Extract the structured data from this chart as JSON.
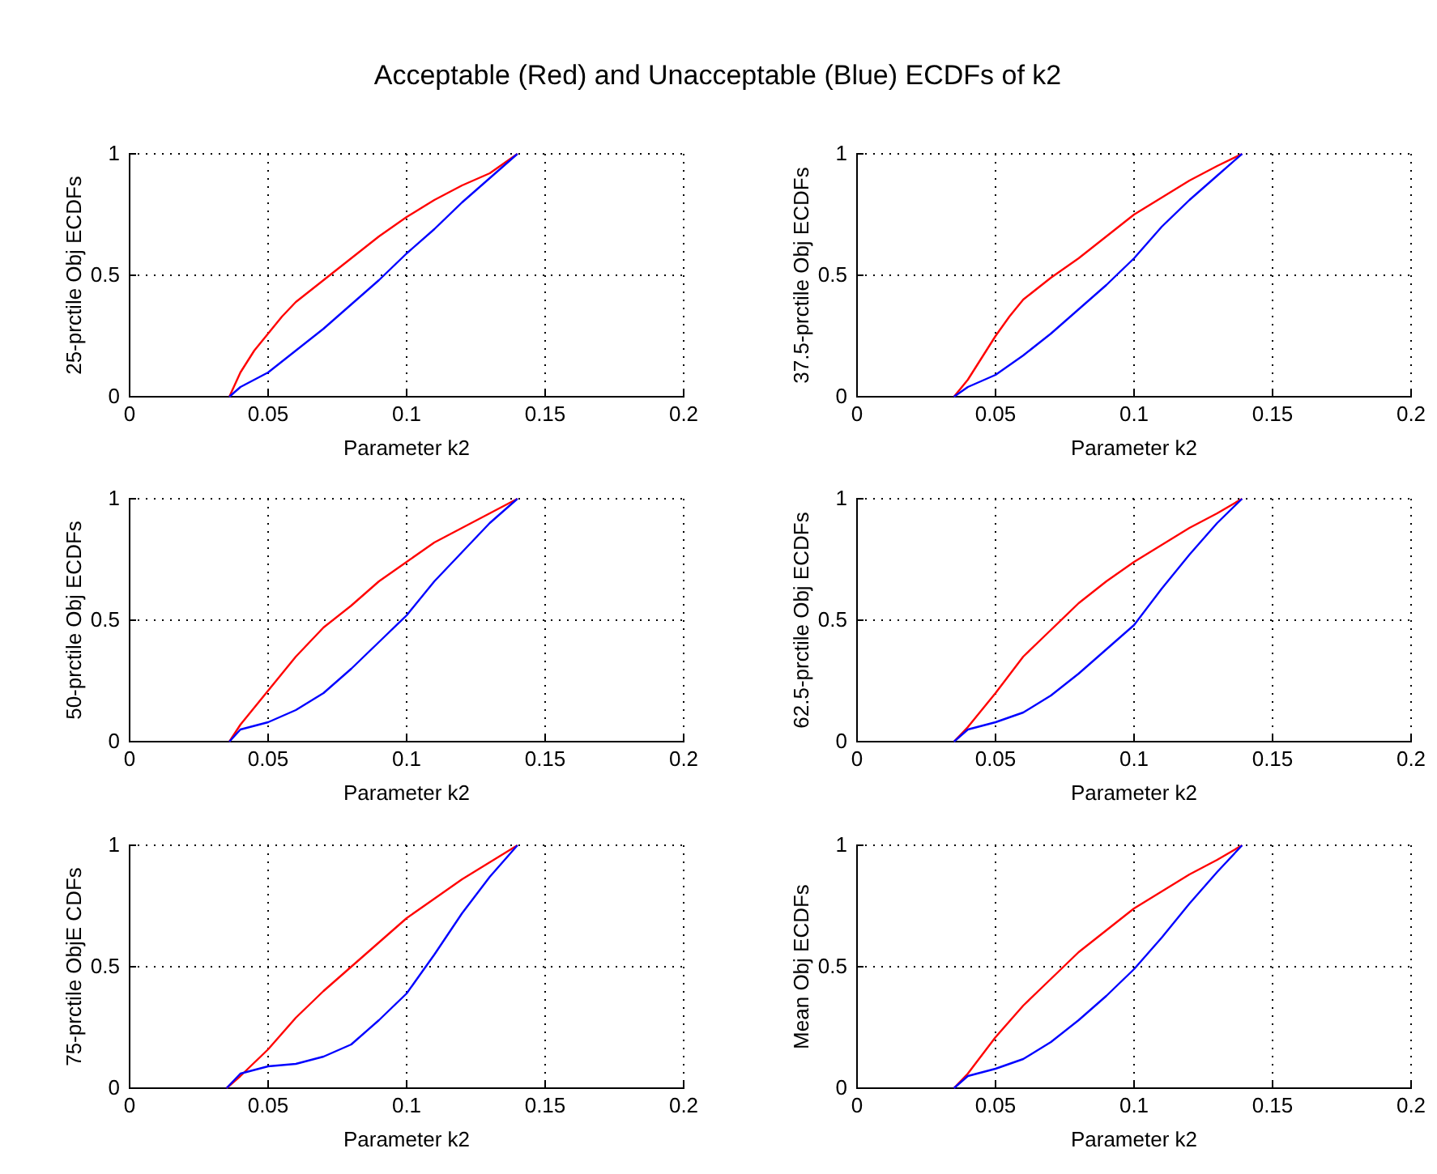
{
  "chart_data": [
    {
      "type": "line",
      "title": "Acceptable (Red) and Unacceptable (Blue) ECDFs of k2",
      "xlabel": "Parameter k2",
      "ylabel": "25-prctile Obj ECDFs",
      "xlim": [
        0,
        0.2
      ],
      "xticks": [
        0,
        0.05,
        0.1,
        0.15,
        0.2
      ],
      "ylim": [
        0,
        1
      ],
      "yticks": [
        0,
        0.5,
        1
      ],
      "grid": true,
      "series": [
        {
          "color": "#ff0000",
          "x": [
            0.036,
            0.04,
            0.045,
            0.05,
            0.055,
            0.06,
            0.07,
            0.08,
            0.09,
            0.1,
            0.11,
            0.12,
            0.13,
            0.14
          ],
          "values": [
            0,
            0.1,
            0.19,
            0.26,
            0.33,
            0.39,
            0.48,
            0.57,
            0.66,
            0.74,
            0.81,
            0.87,
            0.92,
            1
          ]
        },
        {
          "color": "#0000ff",
          "x": [
            0.036,
            0.04,
            0.05,
            0.06,
            0.07,
            0.08,
            0.09,
            0.1,
            0.11,
            0.12,
            0.13,
            0.14
          ],
          "values": [
            0,
            0.04,
            0.1,
            0.19,
            0.28,
            0.38,
            0.48,
            0.59,
            0.69,
            0.8,
            0.9,
            1
          ]
        }
      ]
    },
    {
      "type": "line",
      "xlabel": "Parameter k2",
      "ylabel": "37.5-prctile Obj ECDFs",
      "xlim": [
        0,
        0.2
      ],
      "xticks": [
        0,
        0.05,
        0.1,
        0.15,
        0.2
      ],
      "ylim": [
        0,
        1
      ],
      "yticks": [
        0,
        0.5,
        1
      ],
      "grid": true,
      "series": [
        {
          "color": "#ff0000",
          "x": [
            0.035,
            0.04,
            0.045,
            0.05,
            0.055,
            0.06,
            0.07,
            0.08,
            0.09,
            0.1,
            0.11,
            0.12,
            0.13,
            0.139
          ],
          "values": [
            0,
            0.07,
            0.16,
            0.25,
            0.33,
            0.4,
            0.49,
            0.57,
            0.66,
            0.75,
            0.82,
            0.89,
            0.95,
            1
          ]
        },
        {
          "color": "#0000ff",
          "x": [
            0.035,
            0.04,
            0.05,
            0.06,
            0.07,
            0.08,
            0.09,
            0.1,
            0.11,
            0.12,
            0.13,
            0.139
          ],
          "values": [
            0,
            0.04,
            0.09,
            0.17,
            0.26,
            0.36,
            0.46,
            0.57,
            0.7,
            0.81,
            0.91,
            1
          ]
        }
      ]
    },
    {
      "type": "line",
      "xlabel": "Parameter k2",
      "ylabel": "50-prctile Obj ECDFs",
      "xlim": [
        0,
        0.2
      ],
      "xticks": [
        0,
        0.05,
        0.1,
        0.15,
        0.2
      ],
      "ylim": [
        0,
        1
      ],
      "yticks": [
        0,
        0.5,
        1
      ],
      "grid": true,
      "series": [
        {
          "color": "#ff0000",
          "x": [
            0.036,
            0.04,
            0.05,
            0.06,
            0.07,
            0.08,
            0.09,
            0.1,
            0.11,
            0.12,
            0.13,
            0.14
          ],
          "values": [
            0,
            0.07,
            0.21,
            0.35,
            0.47,
            0.56,
            0.66,
            0.74,
            0.82,
            0.88,
            0.94,
            1
          ]
        },
        {
          "color": "#0000ff",
          "x": [
            0.036,
            0.04,
            0.05,
            0.06,
            0.07,
            0.08,
            0.09,
            0.1,
            0.11,
            0.12,
            0.13,
            0.14
          ],
          "values": [
            0,
            0.05,
            0.08,
            0.13,
            0.2,
            0.3,
            0.41,
            0.52,
            0.66,
            0.78,
            0.9,
            1
          ]
        }
      ]
    },
    {
      "type": "line",
      "xlabel": "Parameter k2",
      "ylabel": "62.5-prctile Obj ECDFs",
      "xlim": [
        0,
        0.2
      ],
      "xticks": [
        0,
        0.05,
        0.1,
        0.15,
        0.2
      ],
      "ylim": [
        0,
        1
      ],
      "yticks": [
        0,
        0.5,
        1
      ],
      "grid": true,
      "series": [
        {
          "color": "#ff0000",
          "x": [
            0.035,
            0.04,
            0.05,
            0.06,
            0.07,
            0.08,
            0.09,
            0.1,
            0.11,
            0.12,
            0.13,
            0.139
          ],
          "values": [
            0,
            0.06,
            0.2,
            0.35,
            0.46,
            0.57,
            0.66,
            0.74,
            0.81,
            0.88,
            0.94,
            1
          ]
        },
        {
          "color": "#0000ff",
          "x": [
            0.035,
            0.04,
            0.05,
            0.06,
            0.07,
            0.08,
            0.09,
            0.1,
            0.11,
            0.12,
            0.13,
            0.139
          ],
          "values": [
            0,
            0.05,
            0.08,
            0.12,
            0.19,
            0.28,
            0.38,
            0.48,
            0.63,
            0.77,
            0.9,
            1
          ]
        }
      ]
    },
    {
      "type": "line",
      "xlabel": "Parameter k2",
      "ylabel": "75-prctile ObjE CDFs",
      "xlim": [
        0,
        0.2
      ],
      "xticks": [
        0,
        0.05,
        0.1,
        0.15,
        0.2
      ],
      "ylim": [
        0,
        1
      ],
      "yticks": [
        0,
        0.5,
        1
      ],
      "grid": true,
      "series": [
        {
          "color": "#ff0000",
          "x": [
            0.035,
            0.04,
            0.05,
            0.06,
            0.07,
            0.08,
            0.09,
            0.1,
            0.11,
            0.12,
            0.13,
            0.14
          ],
          "values": [
            0,
            0.05,
            0.16,
            0.29,
            0.4,
            0.5,
            0.6,
            0.7,
            0.78,
            0.86,
            0.93,
            1
          ]
        },
        {
          "color": "#0000ff",
          "x": [
            0.035,
            0.04,
            0.05,
            0.06,
            0.07,
            0.08,
            0.09,
            0.1,
            0.11,
            0.12,
            0.13,
            0.14
          ],
          "values": [
            0,
            0.06,
            0.09,
            0.1,
            0.13,
            0.18,
            0.28,
            0.39,
            0.55,
            0.72,
            0.87,
            1
          ]
        }
      ]
    },
    {
      "type": "line",
      "xlabel": "Parameter k2",
      "ylabel": "Mean Obj ECDFs",
      "xlim": [
        0,
        0.2
      ],
      "xticks": [
        0,
        0.05,
        0.1,
        0.15,
        0.2
      ],
      "ylim": [
        0,
        1
      ],
      "yticks": [
        0,
        0.5,
        1
      ],
      "grid": true,
      "series": [
        {
          "color": "#ff0000",
          "x": [
            0.035,
            0.04,
            0.05,
            0.06,
            0.07,
            0.08,
            0.09,
            0.1,
            0.11,
            0.12,
            0.13,
            0.139
          ],
          "values": [
            0,
            0.06,
            0.21,
            0.34,
            0.45,
            0.56,
            0.65,
            0.74,
            0.81,
            0.88,
            0.94,
            1
          ]
        },
        {
          "color": "#0000ff",
          "x": [
            0.035,
            0.04,
            0.05,
            0.06,
            0.07,
            0.08,
            0.09,
            0.1,
            0.11,
            0.12,
            0.13,
            0.139
          ],
          "values": [
            0,
            0.05,
            0.08,
            0.12,
            0.19,
            0.28,
            0.38,
            0.49,
            0.62,
            0.76,
            0.89,
            1
          ]
        }
      ]
    }
  ]
}
